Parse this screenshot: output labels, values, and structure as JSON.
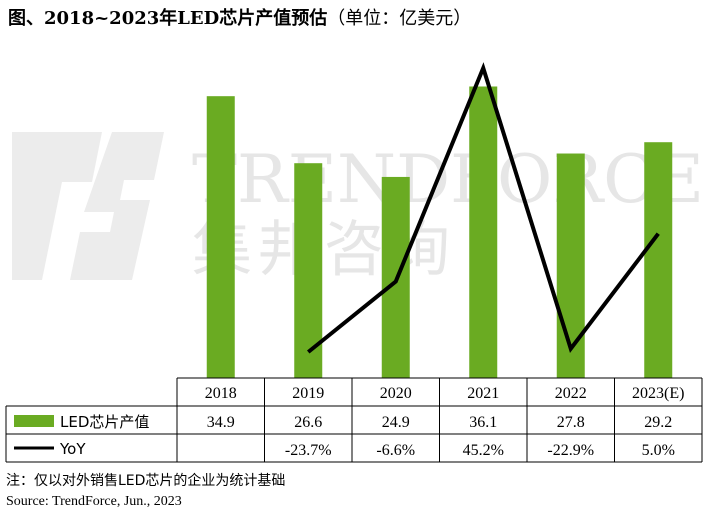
{
  "title": "图、2018~2023年LED芯片产值预估",
  "unit": "（单位：亿美元）",
  "watermark": {
    "brand": "TRENDFORCE",
    "chinese": "集邦咨询"
  },
  "chart_data": {
    "type": "bar",
    "categories": [
      "2018",
      "2019",
      "2020",
      "2021",
      "2022",
      "2023(E)"
    ],
    "series": [
      {
        "name": "LED芯片产值",
        "type": "bar",
        "color": "#6aab22",
        "values": [
          34.9,
          26.6,
          24.9,
          36.1,
          27.8,
          29.2
        ],
        "labels": [
          "34.9",
          "26.6",
          "24.9",
          "36.1",
          "27.8",
          "29.2"
        ]
      },
      {
        "name": "YoY",
        "type": "line",
        "color": "#000000",
        "values": [
          null,
          -23.7,
          -6.6,
          45.2,
          -22.9,
          5.0
        ],
        "labels": [
          "",
          "-23.7%",
          "-6.6%",
          "45.2%",
          "-22.9%",
          "5.0%"
        ]
      }
    ],
    "bar_range": [
      0,
      40
    ],
    "line_range": [
      -30,
      50
    ],
    "grid": false,
    "legend": "data-table"
  },
  "footnote": "注：仅以对外销售LED芯片的企业为统计基础",
  "source": "Source: TrendForce, Jun., 2023"
}
